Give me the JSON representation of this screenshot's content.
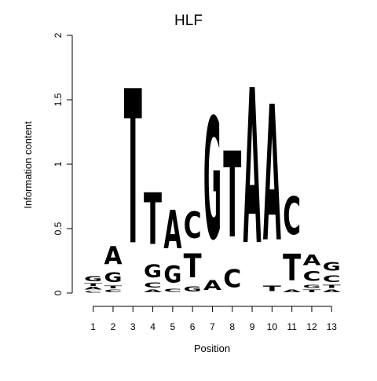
{
  "chart_data": {
    "type": "sequence-logo",
    "title": "HLF",
    "xlabel": "Position",
    "ylabel": "Information content",
    "ylim": [
      0,
      2
    ],
    "y_ticks": [
      0,
      0.5,
      1,
      1.5,
      2
    ],
    "y_tick_labels": [
      "0",
      "0.5",
      "1",
      "1.5",
      "2"
    ],
    "x_ticks": [
      1,
      2,
      3,
      4,
      5,
      6,
      7,
      8,
      9,
      10,
      11,
      12,
      13
    ],
    "x_tick_labels": [
      "1",
      "2",
      "3",
      "4",
      "5",
      "6",
      "7",
      "8",
      "9",
      "10",
      "11",
      "12",
      "13"
    ],
    "colors": {
      "A": "#00cc00",
      "C": "#0000cc",
      "G": "#ffa500",
      "T": "#ff0000"
    },
    "positions": [
      {
        "pos": 1,
        "stack": [
          {
            "letter": "C",
            "height": 0.02
          },
          {
            "letter": "A",
            "height": 0.03
          },
          {
            "letter": "T",
            "height": 0.03
          },
          {
            "letter": "G",
            "height": 0.06
          }
        ]
      },
      {
        "pos": 2,
        "stack": [
          {
            "letter": "C",
            "height": 0.03
          },
          {
            "letter": "T",
            "height": 0.03
          },
          {
            "letter": "G",
            "height": 0.12
          },
          {
            "letter": "A",
            "height": 0.22
          }
        ]
      },
      {
        "pos": 3,
        "stack": [
          {
            "letter": "T",
            "height": 1.92
          }
        ]
      },
      {
        "pos": 4,
        "stack": [
          {
            "letter": "A",
            "height": 0.03
          },
          {
            "letter": "C",
            "height": 0.06
          },
          {
            "letter": "G",
            "height": 0.16
          },
          {
            "letter": "T",
            "height": 0.64
          }
        ]
      },
      {
        "pos": 5,
        "stack": [
          {
            "letter": "C",
            "height": 0.04
          },
          {
            "letter": "G",
            "height": 0.21
          },
          {
            "letter": "A",
            "height": 0.48
          }
        ]
      },
      {
        "pos": 6,
        "stack": [
          {
            "letter": "G",
            "height": 0.06
          },
          {
            "letter": "T",
            "height": 0.3
          },
          {
            "letter": "C",
            "height": 0.33
          }
        ]
      },
      {
        "pos": 7,
        "stack": [
          {
            "letter": "A",
            "height": 0.12
          },
          {
            "letter": "G",
            "height": 1.51
          }
        ]
      },
      {
        "pos": 8,
        "stack": [
          {
            "letter": "C",
            "height": 0.22
          },
          {
            "letter": "T",
            "height": 1.07
          }
        ]
      },
      {
        "pos": 9,
        "stack": [
          {
            "letter": "A",
            "height": 1.93
          }
        ]
      },
      {
        "pos": 10,
        "stack": [
          {
            "letter": "T",
            "height": 0.07
          },
          {
            "letter": "A",
            "height": 1.69
          }
        ]
      },
      {
        "pos": 11,
        "stack": [
          {
            "letter": "A",
            "height": 0.03
          },
          {
            "letter": "T",
            "height": 0.33
          },
          {
            "letter": "C",
            "height": 0.47
          }
        ]
      },
      {
        "pos": 12,
        "stack": [
          {
            "letter": "T",
            "height": 0.03
          },
          {
            "letter": "G",
            "height": 0.04
          },
          {
            "letter": "C",
            "height": 0.12
          },
          {
            "letter": "A",
            "height": 0.13
          }
        ]
      },
      {
        "pos": 13,
        "stack": [
          {
            "letter": "A",
            "height": 0.03
          },
          {
            "letter": "T",
            "height": 0.04
          },
          {
            "letter": "C",
            "height": 0.08
          },
          {
            "letter": "G",
            "height": 0.11
          }
        ]
      }
    ]
  }
}
